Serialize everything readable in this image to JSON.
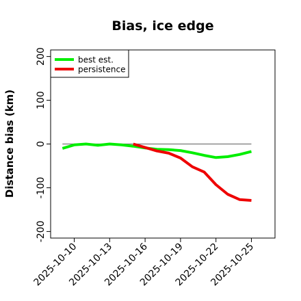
{
  "chart_data": {
    "type": "line",
    "title": "Bias, ice edge",
    "xlabel": "",
    "ylabel": "Distance bias (km)",
    "x_tick_labels": [
      "2025-10-10",
      "2025-10-13",
      "2025-10-16",
      "2025-10-19",
      "2025-10-22",
      "2025-10-25"
    ],
    "x_tick_dates": [
      "2025-10-10",
      "2025-10-13",
      "2025-10-16",
      "2025-10-19",
      "2025-10-22",
      "2025-10-25"
    ],
    "xlim": [
      "2025-10-08",
      "2025-10-27"
    ],
    "y_ticks": [
      -200,
      -100,
      0,
      100,
      200
    ],
    "y_tick_labels": [
      "-200",
      "-100",
      "0",
      "100",
      "200"
    ],
    "ylim": [
      -215,
      215
    ],
    "grid": false,
    "legend_position": "top-left",
    "reference_line": {
      "y": 0,
      "x_start": "2025-10-09",
      "x_end": "2025-10-25",
      "color": "#777777"
    },
    "series": [
      {
        "name": "best est.",
        "color": "#00ee00",
        "x": [
          "2025-10-09",
          "2025-10-10",
          "2025-10-11",
          "2025-10-12",
          "2025-10-13",
          "2025-10-14",
          "2025-10-15",
          "2025-10-16",
          "2025-10-17",
          "2025-10-18",
          "2025-10-19",
          "2025-10-20",
          "2025-10-21",
          "2025-10-22",
          "2025-10-23",
          "2025-10-24",
          "2025-10-25"
        ],
        "y": [
          -10,
          -2,
          0,
          -3,
          0,
          -2,
          -5,
          -9,
          -12,
          -13,
          -15,
          -20,
          -26,
          -31,
          -29,
          -24,
          -17
        ]
      },
      {
        "name": "persistence",
        "color": "#ee0000",
        "x": [
          "2025-10-15",
          "2025-10-16",
          "2025-10-17",
          "2025-10-18",
          "2025-10-19",
          "2025-10-20",
          "2025-10-21",
          "2025-10-22",
          "2025-10-23",
          "2025-10-24",
          "2025-10-25"
        ],
        "y": [
          0,
          -8,
          -16,
          -21,
          -32,
          -52,
          -64,
          -93,
          -115,
          -127,
          -129
        ]
      }
    ]
  }
}
